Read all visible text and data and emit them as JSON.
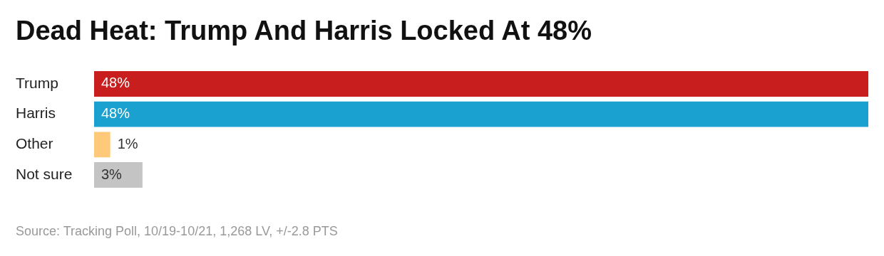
{
  "chart_data": {
    "type": "bar",
    "orientation": "horizontal",
    "title": "Dead Heat: Trump And Harris Locked At 48%",
    "categories": [
      "Trump",
      "Harris",
      "Other",
      "Not sure"
    ],
    "values": [
      48,
      48,
      1,
      3
    ],
    "colors": [
      "#c81e1e",
      "#1aa1cf",
      "#fec979",
      "#c4c4c4"
    ],
    "data_labels": true,
    "value_labels": [
      "48%",
      "48%",
      "1%",
      "3%"
    ],
    "grid": false,
    "legend": false,
    "annotations": [
      "Source: Tracking Poll, 10/19-10/21, 1,268 LV, +/-2.8 PTS"
    ]
  }
}
